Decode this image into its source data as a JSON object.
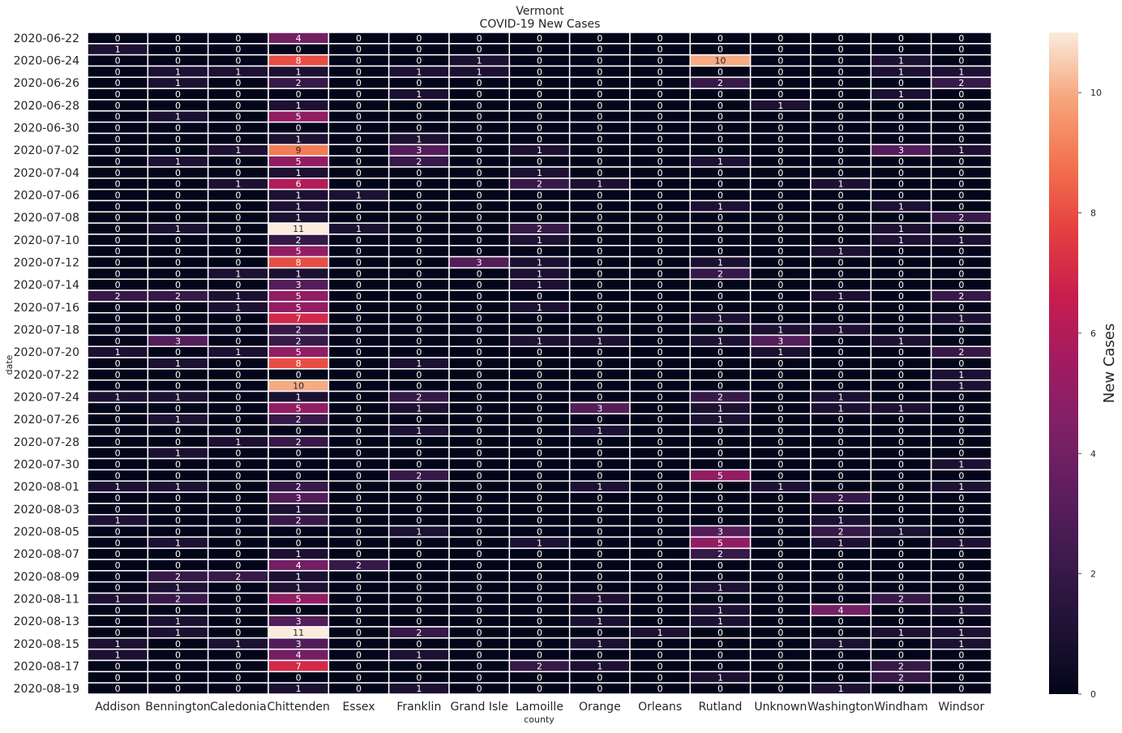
{
  "chart_data": {
    "type": "heatmap",
    "title": "Vermont",
    "subtitle": "COVID-19 New Cases",
    "xlabel": "county",
    "ylabel": "date",
    "colorbar_label": "New Cases",
    "colorbar_ticks": [
      0,
      2,
      4,
      6,
      8,
      10
    ],
    "value_range": [
      0,
      11
    ],
    "colormap": "rocket",
    "annotated": true,
    "columns": [
      "Addison",
      "Bennington",
      "Caledonia",
      "Chittenden",
      "Essex",
      "Franklin",
      "Grand Isle",
      "Lamoille",
      "Orange",
      "Orleans",
      "Rutland",
      "Unknown",
      "Washington",
      "Windham",
      "Windsor"
    ],
    "dates": [
      "2020-06-22",
      "2020-06-23",
      "2020-06-24",
      "2020-06-25",
      "2020-06-26",
      "2020-06-27",
      "2020-06-28",
      "2020-06-29",
      "2020-06-30",
      "2020-07-01",
      "2020-07-02",
      "2020-07-03",
      "2020-07-04",
      "2020-07-05",
      "2020-07-06",
      "2020-07-07",
      "2020-07-08",
      "2020-07-09",
      "2020-07-10",
      "2020-07-11",
      "2020-07-12",
      "2020-07-13",
      "2020-07-14",
      "2020-07-15",
      "2020-07-16",
      "2020-07-17",
      "2020-07-18",
      "2020-07-19",
      "2020-07-20",
      "2020-07-21",
      "2020-07-22",
      "2020-07-23",
      "2020-07-24",
      "2020-07-25",
      "2020-07-26",
      "2020-07-27",
      "2020-07-28",
      "2020-07-29",
      "2020-07-30",
      "2020-07-31",
      "2020-08-01",
      "2020-08-02",
      "2020-08-03",
      "2020-08-04",
      "2020-08-05",
      "2020-08-06",
      "2020-08-07",
      "2020-08-08",
      "2020-08-09",
      "2020-08-10",
      "2020-08-11",
      "2020-08-12",
      "2020-08-13",
      "2020-08-14",
      "2020-08-15",
      "2020-08-16",
      "2020-08-17",
      "2020-08-18",
      "2020-08-19"
    ],
    "tick_labels": [
      "2020-06-22",
      "2020-06-24",
      "2020-06-26",
      "2020-06-28",
      "2020-06-30",
      "2020-07-02",
      "2020-07-04",
      "2020-07-06",
      "2020-07-08",
      "2020-07-10",
      "2020-07-12",
      "2020-07-14",
      "2020-07-16",
      "2020-07-18",
      "2020-07-20",
      "2020-07-22",
      "2020-07-24",
      "2020-07-26",
      "2020-07-28",
      "2020-07-30",
      "2020-08-01",
      "2020-08-03",
      "2020-08-05",
      "2020-08-07",
      "2020-08-09",
      "2020-08-11",
      "2020-08-13",
      "2020-08-15",
      "2020-08-17",
      "2020-08-19"
    ],
    "values": [
      [
        0,
        0,
        0,
        4,
        0,
        0,
        0,
        0,
        0,
        0,
        0,
        0,
        0,
        0,
        0
      ],
      [
        1,
        0,
        0,
        0,
        0,
        0,
        0,
        0,
        0,
        0,
        0,
        0,
        0,
        0,
        0
      ],
      [
        0,
        0,
        0,
        8,
        0,
        0,
        1,
        0,
        0,
        0,
        10,
        0,
        0,
        1,
        0
      ],
      [
        0,
        1,
        1,
        1,
        0,
        1,
        1,
        0,
        0,
        0,
        0,
        0,
        0,
        1,
        1
      ],
      [
        0,
        1,
        0,
        2,
        0,
        0,
        0,
        0,
        0,
        0,
        2,
        0,
        0,
        0,
        2
      ],
      [
        0,
        0,
        0,
        0,
        0,
        1,
        0,
        0,
        0,
        0,
        0,
        0,
        0,
        1,
        0
      ],
      [
        0,
        0,
        0,
        1,
        0,
        0,
        0,
        0,
        0,
        0,
        0,
        1,
        0,
        0,
        0
      ],
      [
        0,
        1,
        0,
        5,
        0,
        0,
        0,
        0,
        0,
        0,
        0,
        0,
        0,
        0,
        0
      ],
      [
        0,
        0,
        0,
        0,
        0,
        0,
        0,
        0,
        0,
        0,
        0,
        0,
        0,
        0,
        0
      ],
      [
        0,
        0,
        0,
        1,
        0,
        1,
        0,
        0,
        0,
        0,
        0,
        0,
        0,
        0,
        0
      ],
      [
        0,
        0,
        1,
        9,
        0,
        3,
        0,
        1,
        0,
        0,
        0,
        0,
        0,
        3,
        1
      ],
      [
        0,
        1,
        0,
        5,
        0,
        2,
        0,
        0,
        0,
        0,
        1,
        0,
        0,
        0,
        0
      ],
      [
        0,
        0,
        0,
        1,
        0,
        0,
        0,
        1,
        0,
        0,
        0,
        0,
        0,
        0,
        0
      ],
      [
        0,
        0,
        1,
        6,
        0,
        0,
        0,
        2,
        1,
        0,
        0,
        0,
        1,
        0,
        0
      ],
      [
        0,
        0,
        0,
        1,
        1,
        0,
        0,
        0,
        0,
        0,
        0,
        0,
        0,
        0,
        0
      ],
      [
        0,
        0,
        0,
        1,
        0,
        0,
        0,
        0,
        0,
        0,
        1,
        0,
        0,
        1,
        0
      ],
      [
        0,
        0,
        0,
        1,
        0,
        0,
        0,
        0,
        0,
        0,
        0,
        0,
        0,
        0,
        2
      ],
      [
        0,
        1,
        0,
        11,
        1,
        0,
        0,
        2,
        0,
        0,
        0,
        0,
        0,
        1,
        0
      ],
      [
        0,
        0,
        0,
        2,
        0,
        0,
        0,
        1,
        0,
        0,
        0,
        0,
        0,
        1,
        1
      ],
      [
        0,
        0,
        0,
        5,
        0,
        0,
        0,
        0,
        0,
        0,
        0,
        0,
        1,
        0,
        0
      ],
      [
        0,
        0,
        0,
        8,
        0,
        0,
        3,
        1,
        0,
        0,
        1,
        0,
        0,
        0,
        0
      ],
      [
        0,
        0,
        1,
        1,
        0,
        0,
        0,
        1,
        0,
        0,
        2,
        0,
        0,
        0,
        0
      ],
      [
        0,
        0,
        0,
        3,
        0,
        0,
        0,
        1,
        0,
        0,
        0,
        0,
        0,
        0,
        0
      ],
      [
        2,
        2,
        1,
        5,
        0,
        0,
        0,
        0,
        0,
        0,
        0,
        0,
        1,
        0,
        2
      ],
      [
        0,
        0,
        1,
        5,
        0,
        0,
        0,
        1,
        0,
        0,
        0,
        0,
        0,
        0,
        0
      ],
      [
        0,
        0,
        0,
        7,
        0,
        0,
        0,
        0,
        0,
        0,
        1,
        0,
        0,
        0,
        1
      ],
      [
        0,
        0,
        0,
        2,
        0,
        0,
        0,
        0,
        0,
        0,
        0,
        1,
        1,
        0,
        0
      ],
      [
        0,
        3,
        0,
        2,
        0,
        0,
        0,
        1,
        1,
        0,
        1,
        3,
        0,
        1,
        0
      ],
      [
        1,
        0,
        1,
        5,
        0,
        0,
        0,
        0,
        0,
        0,
        0,
        1,
        0,
        0,
        2
      ],
      [
        0,
        1,
        0,
        8,
        0,
        1,
        0,
        0,
        0,
        0,
        0,
        0,
        0,
        0,
        0
      ],
      [
        0,
        0,
        0,
        0,
        0,
        0,
        0,
        0,
        0,
        0,
        0,
        0,
        0,
        0,
        1
      ],
      [
        0,
        0,
        0,
        10,
        0,
        0,
        0,
        0,
        0,
        0,
        0,
        0,
        0,
        0,
        1
      ],
      [
        1,
        1,
        0,
        1,
        0,
        2,
        0,
        0,
        0,
        0,
        2,
        0,
        1,
        0,
        0
      ],
      [
        0,
        0,
        0,
        5,
        0,
        1,
        0,
        0,
        3,
        0,
        1,
        0,
        1,
        1,
        0
      ],
      [
        0,
        1,
        0,
        2,
        0,
        0,
        0,
        0,
        0,
        0,
        1,
        0,
        0,
        0,
        0
      ],
      [
        0,
        0,
        0,
        0,
        0,
        1,
        0,
        0,
        1,
        0,
        0,
        0,
        0,
        0,
        0
      ],
      [
        0,
        0,
        1,
        2,
        0,
        0,
        0,
        0,
        0,
        0,
        0,
        0,
        0,
        0,
        0
      ],
      [
        0,
        1,
        0,
        0,
        0,
        0,
        0,
        0,
        0,
        0,
        0,
        0,
        0,
        0,
        0
      ],
      [
        0,
        0,
        0,
        0,
        0,
        0,
        0,
        0,
        0,
        0,
        0,
        0,
        0,
        0,
        1
      ],
      [
        0,
        0,
        0,
        0,
        0,
        2,
        0,
        0,
        0,
        0,
        5,
        0,
        0,
        0,
        0
      ],
      [
        1,
        1,
        0,
        2,
        0,
        0,
        0,
        0,
        1,
        0,
        0,
        1,
        0,
        0,
        1
      ],
      [
        0,
        0,
        0,
        3,
        0,
        0,
        0,
        0,
        0,
        0,
        0,
        0,
        2,
        0,
        0
      ],
      [
        0,
        0,
        0,
        1,
        0,
        0,
        0,
        0,
        0,
        0,
        0,
        0,
        0,
        0,
        0
      ],
      [
        1,
        0,
        0,
        2,
        0,
        0,
        0,
        0,
        0,
        0,
        0,
        0,
        1,
        0,
        0
      ],
      [
        0,
        0,
        0,
        0,
        0,
        1,
        0,
        0,
        0,
        0,
        3,
        0,
        2,
        1,
        0
      ],
      [
        0,
        1,
        0,
        0,
        0,
        0,
        0,
        1,
        0,
        0,
        5,
        0,
        1,
        0,
        1
      ],
      [
        0,
        0,
        0,
        1,
        0,
        0,
        0,
        0,
        0,
        0,
        2,
        0,
        0,
        0,
        0
      ],
      [
        0,
        0,
        0,
        4,
        2,
        0,
        0,
        0,
        0,
        0,
        0,
        0,
        0,
        0,
        0
      ],
      [
        0,
        2,
        2,
        1,
        0,
        0,
        0,
        0,
        0,
        0,
        0,
        0,
        0,
        0,
        0
      ],
      [
        0,
        1,
        0,
        1,
        0,
        0,
        0,
        0,
        0,
        0,
        1,
        0,
        0,
        0,
        0
      ],
      [
        1,
        2,
        0,
        5,
        0,
        0,
        0,
        0,
        1,
        0,
        0,
        0,
        0,
        2,
        0
      ],
      [
        0,
        0,
        0,
        0,
        0,
        0,
        0,
        0,
        0,
        0,
        1,
        0,
        4,
        0,
        1
      ],
      [
        0,
        1,
        0,
        3,
        0,
        0,
        0,
        0,
        1,
        0,
        1,
        0,
        0,
        0,
        0
      ],
      [
        0,
        1,
        0,
        11,
        0,
        2,
        0,
        0,
        0,
        1,
        0,
        0,
        0,
        1,
        1
      ],
      [
        1,
        0,
        1,
        3,
        0,
        0,
        0,
        0,
        1,
        0,
        0,
        0,
        1,
        0,
        1
      ],
      [
        1,
        0,
        0,
        4,
        0,
        1,
        0,
        0,
        0,
        0,
        0,
        0,
        0,
        0,
        0
      ],
      [
        0,
        0,
        0,
        7,
        0,
        0,
        0,
        2,
        1,
        0,
        0,
        0,
        0,
        2,
        0
      ],
      [
        0,
        0,
        0,
        0,
        0,
        0,
        0,
        0,
        0,
        0,
        1,
        0,
        0,
        2,
        0
      ],
      [
        0,
        0,
        0,
        1,
        0,
        1,
        0,
        0,
        0,
        0,
        0,
        0,
        1,
        0,
        0
      ]
    ]
  }
}
